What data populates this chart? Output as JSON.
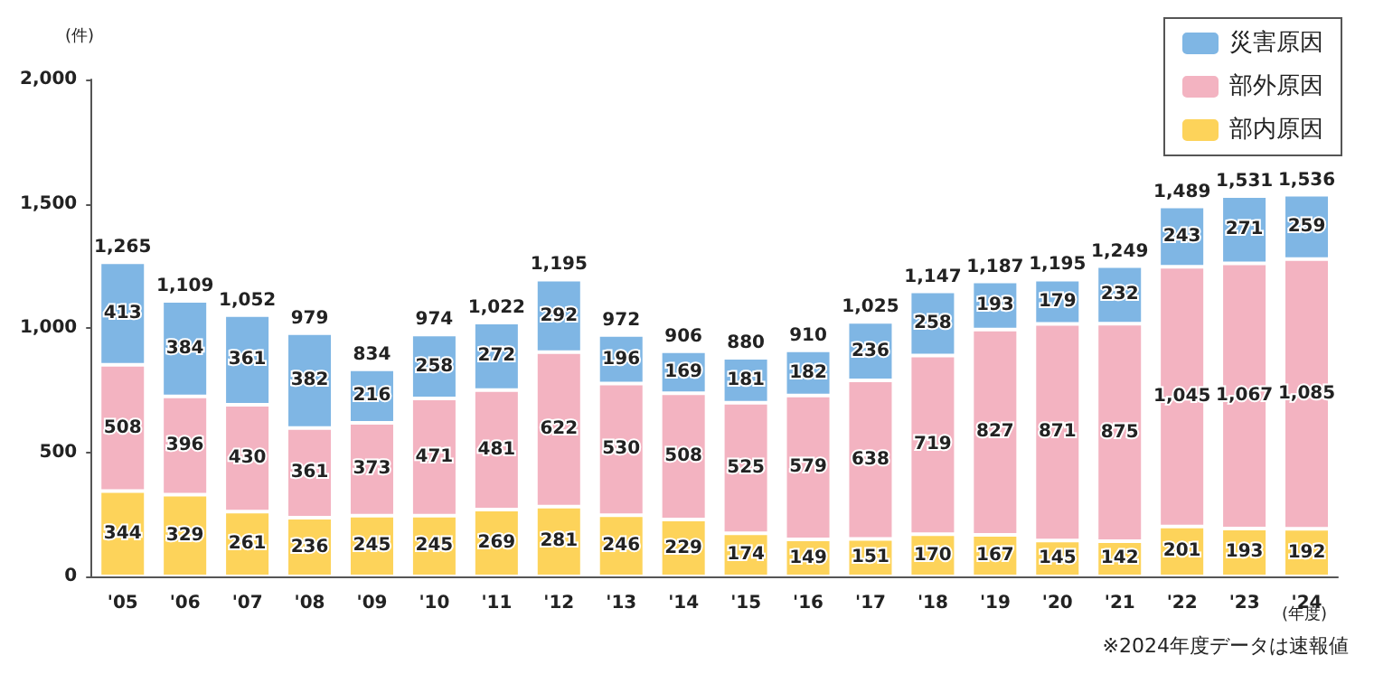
{
  "chart_data": {
    "type": "bar",
    "stacked": true,
    "ylabel": "(件)",
    "xlabel": "(年度)",
    "categories": [
      "'05",
      "'06",
      "'07",
      "'08",
      "'09",
      "'10",
      "'11",
      "'12",
      "'13",
      "'14",
      "'15",
      "'16",
      "'17",
      "'18",
      "'19",
      "'20",
      "'21",
      "'22",
      "'23",
      "'24"
    ],
    "series": [
      {
        "name": "部内原因",
        "color": "#fdd35a",
        "values": [
          344,
          329,
          261,
          236,
          245,
          245,
          269,
          281,
          246,
          229,
          174,
          149,
          151,
          170,
          167,
          145,
          142,
          201,
          193,
          192
        ],
        "value_labels": [
          "344",
          "329",
          "261",
          "236",
          "245",
          "245",
          "269",
          "281",
          "246",
          "229",
          "174",
          "149",
          "151",
          "170",
          "167",
          "145",
          "142",
          "201",
          "193",
          "192"
        ]
      },
      {
        "name": "部外原因",
        "color": "#f3b3c1",
        "values": [
          508,
          396,
          430,
          361,
          373,
          471,
          481,
          622,
          530,
          508,
          525,
          579,
          638,
          719,
          827,
          871,
          875,
          1045,
          1067,
          1085
        ],
        "value_labels": [
          "508",
          "396",
          "430",
          "361",
          "373",
          "471",
          "481",
          "622",
          "530",
          "508",
          "525",
          "579",
          "638",
          "719",
          "827",
          "871",
          "875",
          "1,045",
          "1,067",
          "1,085"
        ]
      },
      {
        "name": "災害原因",
        "color": "#7fb6e4",
        "values": [
          413,
          384,
          361,
          382,
          216,
          258,
          272,
          292,
          196,
          169,
          181,
          182,
          236,
          258,
          193,
          179,
          232,
          243,
          271,
          259
        ],
        "value_labels": [
          "413",
          "384",
          "361",
          "382",
          "216",
          "258",
          "272",
          "292",
          "196",
          "169",
          "181",
          "182",
          "236",
          "258",
          "193",
          "179",
          "232",
          "243",
          "271",
          "259"
        ]
      }
    ],
    "totals": [
      "1,265",
      "1,109",
      "1,052",
      "979",
      "834",
      "974",
      "1,022",
      "1,195",
      "972",
      "906",
      "880",
      "910",
      "1,025",
      "1,147",
      "1,187",
      "1,195",
      "1,249",
      "1,489",
      "1,531",
      "1,536"
    ],
    "ylim": [
      0,
      2000
    ],
    "yticks": [
      0,
      500,
      {
        "value": 1000,
        "label": "1,000"
      },
      {
        "value": 1500,
        "label": "1,500"
      },
      {
        "value": 2000,
        "label": "2,000"
      }
    ],
    "grid": false,
    "legend": "top right",
    "annotations": [
      "※2024年度データは速報値"
    ]
  }
}
